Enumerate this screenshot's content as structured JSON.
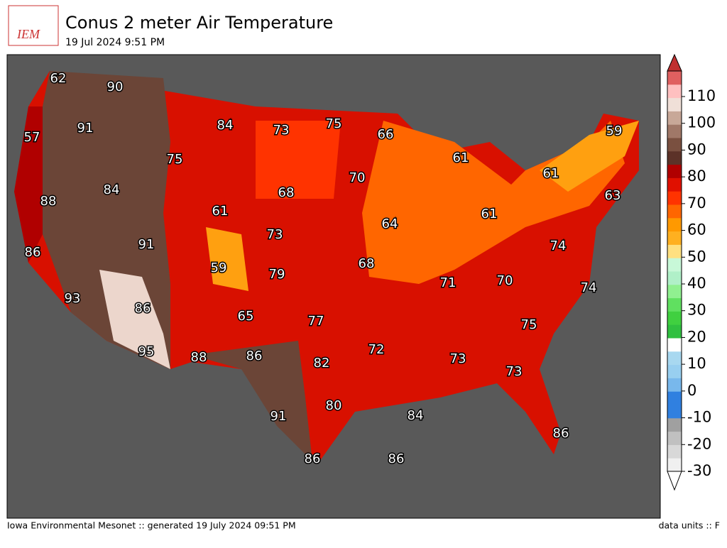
{
  "header": {
    "logo": "IEM",
    "title": "Conus 2 meter Air Temperature",
    "subtitle": "19 Jul 2024 9:51 PM"
  },
  "map": {
    "labels": [
      62,
      90,
      57,
      91,
      84,
      73,
      75,
      66,
      59,
      75,
      61,
      70,
      61,
      84,
      88,
      68,
      63,
      61,
      61,
      64,
      73,
      91,
      74,
      86,
      59,
      79,
      68,
      71,
      70,
      74,
      93,
      86,
      65,
      77,
      75,
      95,
      88,
      86,
      82,
      72,
      73,
      73,
      80,
      84,
      91,
      86,
      86,
      86
    ]
  },
  "colorbar": {
    "ticks": [
      -30,
      -20,
      -10,
      0,
      10,
      20,
      30,
      40,
      50,
      60,
      70,
      80,
      90,
      100,
      110
    ],
    "colors": [
      "#f0f0f0",
      "#d8d8d8",
      "#c0c0c0",
      "#a0a0a0",
      "#3080e0",
      "#3080e0",
      "#78b8ec",
      "#98cff0",
      "#a8d8f0",
      "#ffffff",
      "#30c040",
      "#40d040",
      "#60e060",
      "#90f090",
      "#b0f0c8",
      "#c8f8d8",
      "#ffe080",
      "#ffb020",
      "#ff9900",
      "#ff6600",
      "#ff3300",
      "#e01000",
      "#b00000",
      "#5c3228",
      "#7a5040",
      "#a07868",
      "#c8a898",
      "#f0e0d8",
      "#ffc0c0",
      "#e06060"
    ]
  },
  "footer": {
    "left": "Iowa Environmental Mesonet :: generated 19 July 2024 09:51 PM",
    "right": "data units :: F"
  }
}
